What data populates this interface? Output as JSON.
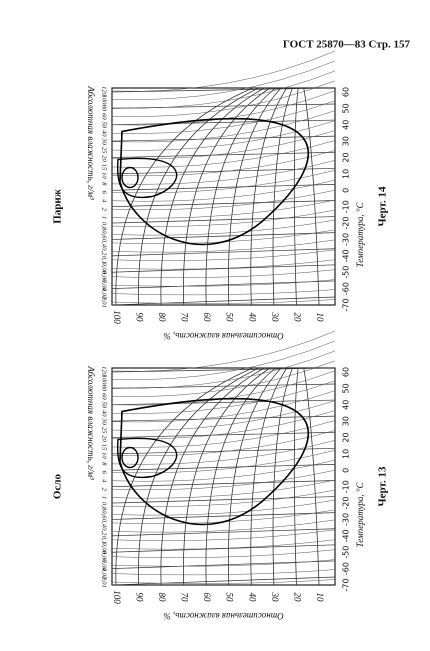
{
  "header": {
    "text": "ГОСТ 25870—83 Стр. 157"
  },
  "figures": [
    {
      "city": "Париж",
      "caption": "Черт. 14",
      "abs_humidity_label": "Абсолютная влажность, г/м³",
      "rel_humidity_label": "Относительная влажность, %",
      "temperature_label": "Температура, °С",
      "temperature_ticks": [
        -70,
        -60,
        -50,
        -40,
        -30,
        -20,
        -10,
        0,
        10,
        20,
        30,
        40,
        50,
        60
      ],
      "rel_humidity_ticks": [
        100,
        90,
        80,
        70,
        60,
        50,
        40,
        30,
        20,
        10
      ],
      "abs_humidity_ticks": [
        "120",
        "100",
        "80",
        "60",
        "50",
        "40",
        "30",
        "25",
        "20",
        "15",
        "10",
        "8",
        "6",
        "4",
        "2",
        "1",
        "0,8",
        "0,6",
        "0,4",
        "0,2",
        "0,1",
        "0,08",
        "0,06",
        "0,04",
        "0,02",
        "0,01"
      ]
    },
    {
      "city": "Осло",
      "caption": "Черт. 13",
      "abs_humidity_label": "Абсолютная влажность, г/м³",
      "rel_humidity_label": "Относительная влажность, %",
      "temperature_label": "Температура, °С",
      "temperature_ticks": [
        -70,
        -60,
        -50,
        -40,
        -30,
        -20,
        -10,
        0,
        10,
        20,
        30,
        40,
        50,
        60
      ],
      "rel_humidity_ticks": [
        100,
        90,
        80,
        70,
        60,
        50,
        40,
        30,
        20,
        10
      ],
      "abs_humidity_ticks": [
        "120",
        "100",
        "80",
        "60",
        "50",
        "40",
        "30",
        "25",
        "20",
        "15",
        "10",
        "8",
        "6",
        "4",
        "2",
        "1",
        "0,8",
        "0,6",
        "0,4",
        "0,2",
        "0,1",
        "0,08",
        "0,06",
        "0,04",
        "0,02",
        "0,01"
      ]
    }
  ]
}
